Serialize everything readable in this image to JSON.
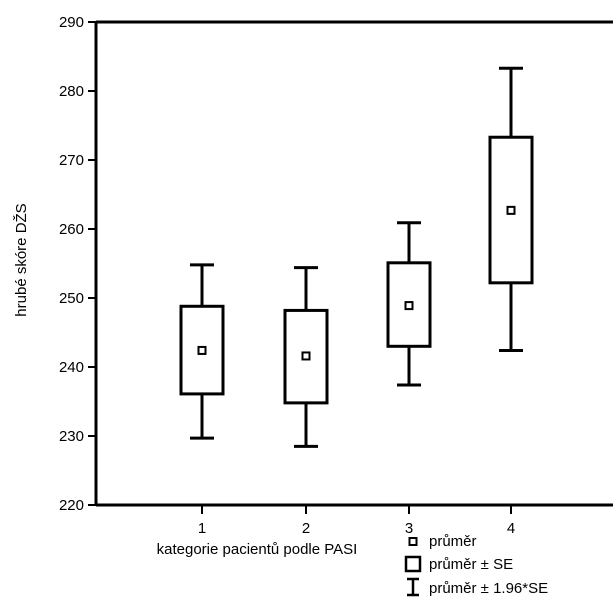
{
  "chart_data": {
    "type": "box",
    "xlabel": "kategorie pacientů podle PASI",
    "ylabel": "hrubé skóre DŽS",
    "ylim": [
      220,
      290
    ],
    "yticks": [
      220,
      230,
      240,
      250,
      260,
      270,
      280,
      290
    ],
    "grid": false,
    "categories": [
      "1",
      "2",
      "3",
      "4"
    ],
    "series": [
      {
        "category": "1",
        "mean": 242.4,
        "mean_minus_se": 236.1,
        "mean_plus_se": 248.8,
        "mean_minus_1_96se": 229.7,
        "mean_plus_1_96se": 254.8
      },
      {
        "category": "2",
        "mean": 241.6,
        "mean_minus_se": 234.8,
        "mean_plus_se": 248.2,
        "mean_minus_1_96se": 228.5,
        "mean_plus_1_96se": 254.4
      },
      {
        "category": "3",
        "mean": 248.9,
        "mean_minus_se": 243.0,
        "mean_plus_se": 255.1,
        "mean_minus_1_96se": 237.4,
        "mean_plus_1_96se": 260.9
      },
      {
        "category": "4",
        "mean": 262.7,
        "mean_minus_se": 252.2,
        "mean_plus_se": 273.3,
        "mean_minus_1_96se": 242.4,
        "mean_plus_1_96se": 283.3
      }
    ],
    "legend": {
      "position": "bottom-right",
      "items": [
        {
          "symbol": "mean-marker",
          "label": "průměr"
        },
        {
          "symbol": "box",
          "label": "průměr ± SE"
        },
        {
          "symbol": "whisker",
          "label": "průměr ± 1.96*SE"
        }
      ]
    },
    "colors": {
      "ink": "#000000",
      "background": "#ffffff"
    }
  }
}
